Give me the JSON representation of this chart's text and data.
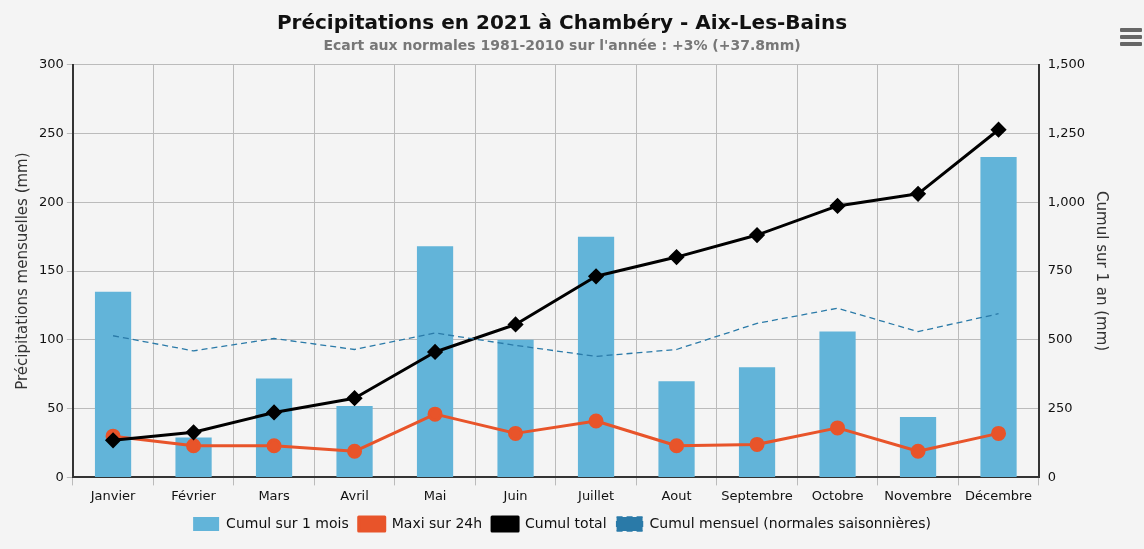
{
  "chart_data": {
    "type": "bar",
    "title": "Précipitations en 2021 à Chambéry - Aix-Les-Bains",
    "subtitle": "Ecart aux normales 1981-2010 sur l'année : +3% (+37.8mm)",
    "ylabel": "Précipitations mensuelles (mm)",
    "y2label": "Cumul sur 1 an (mm)",
    "categories": [
      "Janvier",
      "Février",
      "Mars",
      "Avril",
      "Mai",
      "Juin",
      "Juillet",
      "Aout",
      "Septembre",
      "Octobre",
      "Novembre",
      "Décembre"
    ],
    "series": [
      {
        "name": "Cumul sur 1 mois",
        "color": "#62b4d9",
        "values": [
          135,
          29,
          72,
          52,
          168,
          100,
          175,
          70,
          80,
          106,
          44,
          233
        ]
      },
      {
        "name": "Maxi sur 24h",
        "type": "line",
        "color": "#e8542a",
        "marker": "circle",
        "values": [
          30,
          23,
          23,
          19,
          46,
          32,
          41,
          23,
          24,
          36,
          19,
          32
        ]
      },
      {
        "name": "Cumul total",
        "type": "line",
        "axis": "y2",
        "color": "#000000",
        "marker": "diamond",
        "values": [
          135,
          164,
          236,
          288,
          456,
          556,
          731,
          801,
          881,
          987,
          1031,
          1264
        ]
      },
      {
        "name": "Cumul mensuel (normales saisonnières)",
        "type": "line",
        "color": "#2a7aa8",
        "marker": "none",
        "line_style": "dashed",
        "values": [
          103,
          92,
          101,
          93,
          105,
          96,
          88,
          93,
          112,
          123,
          106,
          119
        ]
      }
    ],
    "ylim": [
      0,
      300
    ],
    "yticks": [
      0,
      50,
      100,
      150,
      200,
      250,
      300
    ],
    "y2lim": [
      0,
      1500
    ],
    "y2ticks": [
      0,
      250,
      500,
      750,
      {
        "value": 1000,
        "label": "1,000"
      },
      {
        "value": 1250,
        "label": "1,250"
      },
      {
        "value": 1500,
        "label": "1,500"
      }
    ],
    "grid": true,
    "legend": "bottom"
  }
}
